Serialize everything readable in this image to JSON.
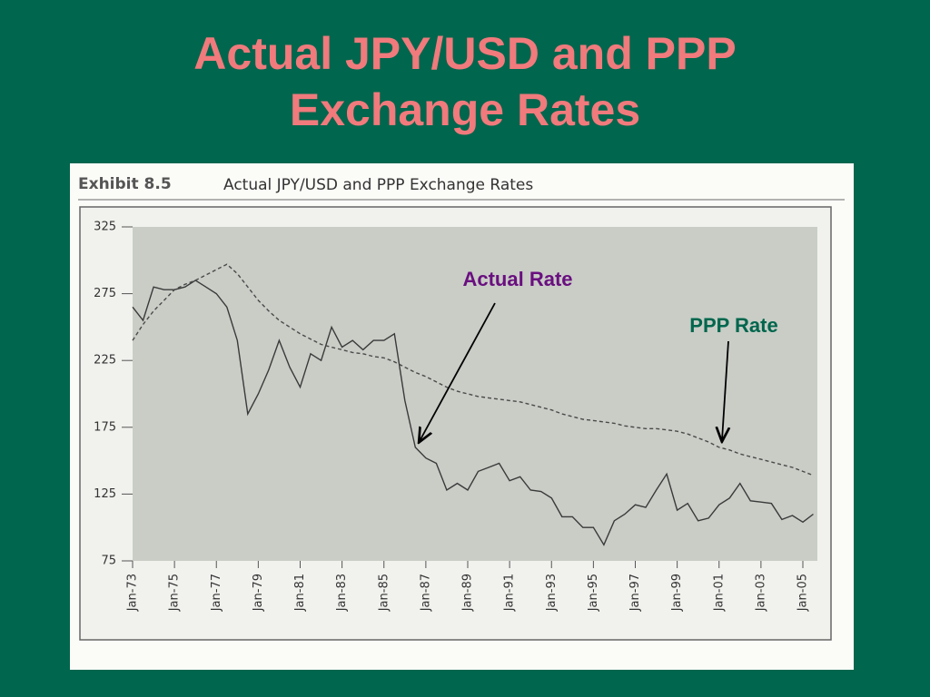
{
  "slide_title": "Actual JPY/USD and PPP Exchange Rates",
  "chart_data": {
    "type": "line",
    "exhibit": "Exhibit 8.5",
    "title": "Actual JPY/USD and PPP Exchange Rates",
    "categories": [
      "Jan-73",
      null,
      null,
      null,
      "Jan-75",
      null,
      null,
      null,
      "Jan-77",
      null,
      null,
      null,
      "Jan-79",
      null,
      null,
      null,
      "Jan-81",
      null,
      null,
      null,
      "Jan-83",
      null,
      null,
      null,
      "Jan-85",
      null,
      null,
      null,
      "Jan-87",
      null,
      null,
      null,
      "Jan-89",
      null,
      null,
      null,
      "Jan-91",
      null,
      null,
      null,
      "Jan-93",
      null,
      null,
      null,
      "Jan-95",
      null,
      null,
      null,
      "Jan-97",
      null,
      null,
      null,
      "Jan-99",
      null,
      null,
      null,
      "Jan-01",
      null,
      null,
      null,
      "Jan-03",
      null,
      null,
      null,
      "Jan-05",
      null
    ],
    "series": [
      {
        "name": "Actual Rate",
        "color": "#3a3a3a",
        "dashed": false,
        "label_color": "#6a0f80",
        "values": [
          265,
          255,
          280,
          278,
          278,
          280,
          285,
          280,
          275,
          265,
          240,
          185,
          200,
          218,
          240,
          220,
          205,
          230,
          225,
          250,
          235,
          240,
          233,
          240,
          240,
          245,
          195,
          160,
          152,
          148,
          128,
          133,
          128,
          142,
          145,
          148,
          135,
          138,
          128,
          127,
          122,
          108,
          108,
          100,
          100,
          87,
          105,
          110,
          117,
          115,
          128,
          140,
          113,
          118,
          105,
          107,
          117,
          122,
          133,
          120,
          119,
          118,
          106,
          109,
          104,
          110
        ]
      },
      {
        "name": "PPP Rate",
        "color": "#4a4a4a",
        "dashed": true,
        "label_color": "#00664d",
        "values": [
          240,
          252,
          262,
          270,
          278,
          282,
          285,
          289,
          293,
          297,
          290,
          280,
          270,
          262,
          255,
          250,
          245,
          241,
          237,
          235,
          233,
          231,
          230,
          228,
          227,
          224,
          220,
          216,
          213,
          209,
          205,
          202,
          200,
          198,
          197,
          196,
          195,
          194,
          192,
          190,
          188,
          185,
          183,
          181,
          180,
          179,
          178,
          176,
          175,
          174,
          174,
          173,
          172,
          170,
          167,
          164,
          160,
          158,
          155,
          153,
          151,
          149,
          147,
          145,
          142,
          139
        ]
      }
    ],
    "ylim": [
      75,
      325
    ],
    "yticks": [
      75,
      125,
      175,
      225,
      275,
      325
    ]
  }
}
